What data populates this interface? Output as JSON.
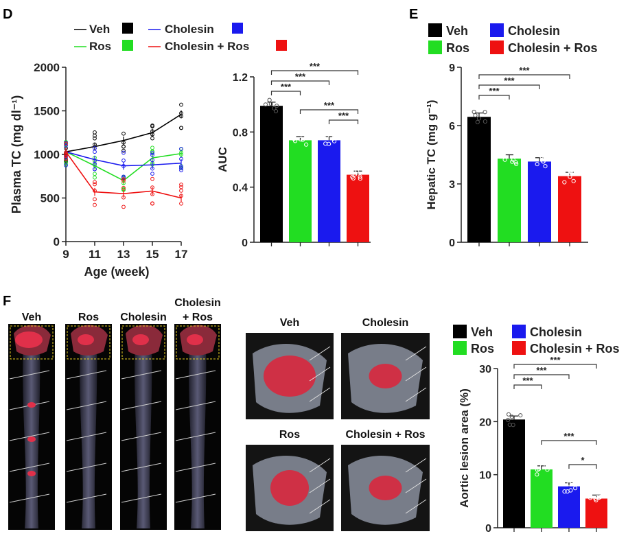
{
  "panels": {
    "D": "D",
    "E": "E",
    "F": "F"
  },
  "colors": {
    "veh": "#000000",
    "ros": "#22dd22",
    "cholesin": "#1a1aee",
    "combo": "#ee1111"
  },
  "chart_data": [
    {
      "id": "plasma-tc",
      "type": "line",
      "title": "",
      "xlabel": "Age (week)",
      "ylabel": "Plasma TC (mg dl⁻¹)",
      "x": [
        9,
        11,
        13,
        15,
        17
      ],
      "xlim": [
        9,
        17
      ],
      "ylim": [
        0,
        2000
      ],
      "yticks": [
        0,
        500,
        1000,
        1500,
        2000
      ],
      "series": [
        {
          "name": "Veh",
          "color": "#000000",
          "values": [
            1030,
            1090,
            1160,
            1250,
            1460
          ]
        },
        {
          "name": "Ros",
          "color": "#22dd22",
          "values": [
            1030,
            870,
            700,
            960,
            1010
          ]
        },
        {
          "name": "Cholesin",
          "color": "#1a1aee",
          "values": [
            1030,
            940,
            870,
            880,
            900
          ]
        },
        {
          "name": "Cholesin + Ros",
          "color": "#ee1111",
          "values": [
            1030,
            570,
            550,
            580,
            500
          ]
        }
      ],
      "legend": [
        "Veh",
        "Ros",
        "Cholesin",
        "Cholesin + Ros"
      ]
    },
    {
      "id": "auc",
      "type": "bar",
      "title": "",
      "xlabel": "",
      "ylabel": "AUC",
      "categories": [
        "Veh",
        "Ros",
        "Cholesin",
        "Cholesin + Ros"
      ],
      "values": [
        0.99,
        0.74,
        0.74,
        0.49
      ],
      "ylim": [
        0,
        1.2
      ],
      "yticks": [
        "0",
        "0.4",
        "0.8",
        "1.2"
      ],
      "significance": [
        {
          "from": 0,
          "to": 3,
          "label": "***"
        },
        {
          "from": 0,
          "to": 2,
          "label": "***"
        },
        {
          "from": 0,
          "to": 1,
          "label": "***"
        },
        {
          "from": 1,
          "to": 3,
          "label": "***"
        },
        {
          "from": 2,
          "to": 3,
          "label": "***"
        }
      ]
    },
    {
      "id": "hepatic-tc",
      "type": "bar",
      "title": "",
      "xlabel": "",
      "ylabel": "Hepatic TC (mg g⁻¹)",
      "categories": [
        "Veh",
        "Ros",
        "Cholesin",
        "Cholesin + Ros"
      ],
      "values": [
        6.45,
        4.3,
        4.15,
        3.4
      ],
      "ylim": [
        0,
        9
      ],
      "yticks": [
        "0",
        "3",
        "6",
        "9"
      ],
      "legend": [
        "Veh",
        "Ros",
        "Cholesin",
        "Cholesin + Ros"
      ],
      "significance": [
        {
          "from": 0,
          "to": 3,
          "label": "***"
        },
        {
          "from": 0,
          "to": 2,
          "label": "***"
        },
        {
          "from": 0,
          "to": 1,
          "label": "***"
        }
      ]
    },
    {
      "id": "aortic-lesion",
      "type": "bar",
      "title": "",
      "xlabel": "",
      "ylabel": "Aortic lesion area (%)",
      "categories": [
        "Veh",
        "Ros",
        "Cholesin",
        "Cholesin + Ros"
      ],
      "values": [
        20.4,
        11.0,
        7.8,
        5.5
      ],
      "ylim": [
        0,
        30
      ],
      "yticks": [
        "0",
        "10",
        "20",
        "30"
      ],
      "legend": [
        "Veh",
        "Ros",
        "Cholesin",
        "Cholesin + Ros"
      ],
      "significance": [
        {
          "from": 0,
          "to": 3,
          "label": "***"
        },
        {
          "from": 0,
          "to": 2,
          "label": "***"
        },
        {
          "from": 0,
          "to": 1,
          "label": "***"
        },
        {
          "from": 1,
          "to": 3,
          "label": "***"
        },
        {
          "from": 2,
          "to": 3,
          "label": "*"
        }
      ]
    }
  ],
  "photos": {
    "aorta_labels": [
      "Veh",
      "Ros",
      "Cholesin",
      "Cholesin\n+ Ros"
    ],
    "arch_labels": [
      "Veh",
      "Cholesin",
      "Ros",
      "Cholesin + Ros"
    ]
  }
}
